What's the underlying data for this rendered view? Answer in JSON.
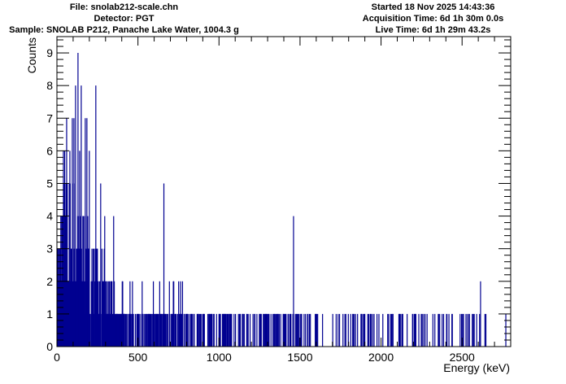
{
  "header": {
    "file": "File: snolab212-scale.chn",
    "detector": "Detector: PGT",
    "sample": "Sample: SNOLAB P212, Panache Lake Water, 1004.3 g",
    "started": "Started 18 Nov 2025 14:43:36",
    "acquisition": "Acquisition Time: 6d 1h 30m 0.0s",
    "live": "Live Time: 6d 1h 29m 43.2s"
  },
  "chart_data": {
    "type": "bar",
    "xlabel": "Energy (keV)",
    "ylabel": "Counts",
    "xlim": [
      0,
      2800
    ],
    "ylim": [
      0,
      9.5
    ],
    "x_ticks": [
      0,
      500,
      1000,
      1500,
      2000,
      2500
    ],
    "y_ticks": [
      0,
      1,
      2,
      3,
      4,
      5,
      6,
      7,
      8,
      9
    ],
    "grid": false,
    "color": "#000090",
    "peaks": [
      {
        "x": 130,
        "y": 9
      },
      {
        "x": 115,
        "y": 8
      },
      {
        "x": 150,
        "y": 8
      },
      {
        "x": 240,
        "y": 8
      },
      {
        "x": 60,
        "y": 7
      },
      {
        "x": 95,
        "y": 7
      },
      {
        "x": 105,
        "y": 7
      },
      {
        "x": 175,
        "y": 7
      },
      {
        "x": 185,
        "y": 7
      },
      {
        "x": 200,
        "y": 6
      },
      {
        "x": 80,
        "y": 6
      },
      {
        "x": 140,
        "y": 6
      },
      {
        "x": 270,
        "y": 5
      },
      {
        "x": 660,
        "y": 5
      },
      {
        "x": 1460,
        "y": 4
      },
      {
        "x": 295,
        "y": 4
      },
      {
        "x": 350,
        "y": 4
      },
      {
        "x": 2614,
        "y": 2
      },
      {
        "x": 2770,
        "y": 1
      }
    ],
    "singles_range": [
      400,
      2650
    ]
  }
}
